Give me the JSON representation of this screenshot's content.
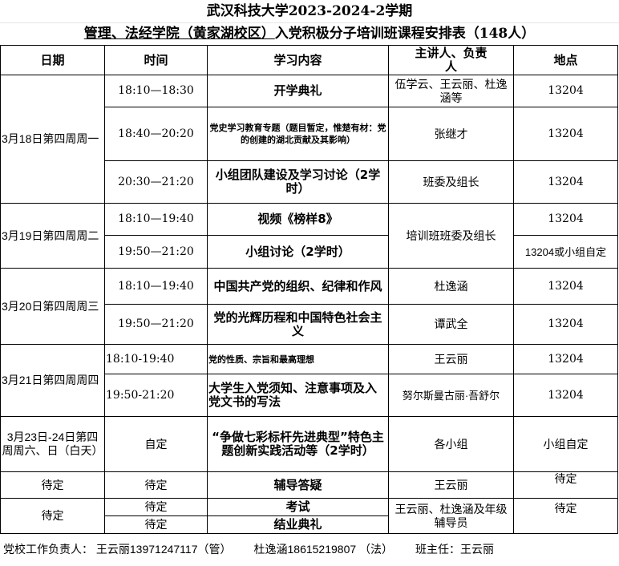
{
  "title": "武汉科技大学2023-2024-2学期",
  "subtitle_underlined": "管理、法经学院（黄家湖校区）",
  "subtitle_rest": "入党积极分子培训班课程安排表（148人）",
  "headers": [
    "日期",
    "时间",
    "学习内容",
    "主讲人、负责人",
    "地点"
  ],
  "rows": [
    {
      "date": "3月18日第四周周一",
      "time": "18:10—18:30",
      "content": "开学典礼",
      "speaker": "伍学云、王云丽、杜逸涵等",
      "place": "13204"
    },
    {
      "time": "18:40—20:20",
      "content": "党史学习教育专题（题目暂定，惟楚有材：党的创建的湖北贡献及其影响）",
      "speaker": "张继才",
      "place": "13204"
    },
    {
      "time": "20:30—21:20",
      "content": "小组团队建设及学习讨论（2学时）",
      "speaker": "班委及组长",
      "place": "13204"
    },
    {
      "date": "3月19日第四周周二",
      "time": "18:10—19:40",
      "content": "视频《榜样8》",
      "speaker": "培训班班委及组长",
      "place": "13204"
    },
    {
      "time": "19:50—21:20",
      "content": "小组讨论（2学时）",
      "place": "13204或小组自定"
    },
    {
      "date": "3月20日第四周周三",
      "time": "18:10—19:40",
      "content": "中国共产党的组织、纪律和作风",
      "speaker": "杜逸涵",
      "place": "13204"
    },
    {
      "time": "19:50—21:20",
      "content": "党的光辉历程和中国特色社会主义",
      "speaker": "谭武全",
      "place": "13204"
    },
    {
      "date": "3月21日第四周周四",
      "time": "18:10-19:40",
      "content": "党的性质、宗旨和最高理想",
      "speaker": "王云丽",
      "place": "13204"
    },
    {
      "time": "19:50-21:20",
      "content": "大学生入党须知、注意事项及入党文书的写法",
      "speaker": "努尔斯曼古丽·吾舒尔",
      "place": "13204"
    },
    {
      "date": "3月23日-24日第四周周六、日（白天）",
      "time": "自定",
      "content": "“争做七彩标杆先进典型”特色主题创新实践活动等（2学时）",
      "speaker": "各小组",
      "place": "小组自定"
    },
    {
      "date": "待定",
      "time": "待定",
      "content": "辅导答疑",
      "speaker": "王云丽",
      "place": "待定"
    },
    {
      "date": "待定",
      "time": "待定",
      "content": "考试",
      "speaker": "王云丽、杜逸涵及年级辅导员",
      "place": "待定"
    },
    {
      "time": "待定",
      "content": "结业典礼"
    }
  ],
  "footer": {
    "party_school": "党校工作负责人： 王云丽13971247117（管）",
    "contact2": "杜逸涵18615219807 （法）",
    "head_teacher": "班主任：王云丽"
  }
}
